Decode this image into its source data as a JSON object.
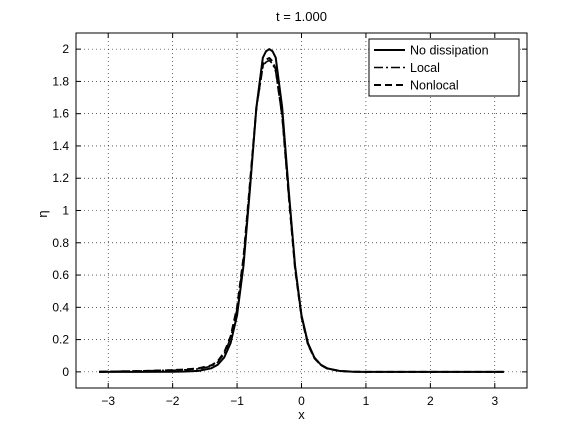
{
  "chart_data": {
    "type": "line",
    "title": "t = 1.000",
    "xlabel": "x",
    "ylabel": "η",
    "xlim": [
      -3.5,
      3.5
    ],
    "ylim": [
      -0.1,
      2.1
    ],
    "xticks": [
      -3,
      -2,
      -1,
      0,
      1,
      2,
      3
    ],
    "xtick_labels": [
      "−3",
      "−2",
      "−1",
      "0",
      "1",
      "2",
      "3"
    ],
    "yticks": [
      0,
      0.2,
      0.4,
      0.6,
      0.8,
      1,
      1.2,
      1.4,
      1.6,
      1.8,
      2
    ],
    "ytick_labels": [
      "0",
      "0.2",
      "0.4",
      "0.6",
      "0.8",
      "1",
      "1.2",
      "1.4",
      "1.6",
      "1.8",
      "2"
    ],
    "grid": true,
    "legend_position": "top-right",
    "series": [
      {
        "name": "No dissipation",
        "style": "solid",
        "x": [
          -3.1416,
          -2.5,
          -2.0,
          -1.8,
          -1.6,
          -1.4,
          -1.3,
          -1.2,
          -1.1,
          -1.0,
          -0.9,
          -0.8,
          -0.7,
          -0.6,
          -0.55,
          -0.5,
          -0.45,
          -0.4,
          -0.3,
          -0.2,
          -0.1,
          0.0,
          0.1,
          0.2,
          0.3,
          0.4,
          0.6,
          0.8,
          1.0,
          1.5,
          2.0,
          2.5,
          3.1416
        ],
        "y": [
          0.0,
          0.0,
          0.001,
          0.002,
          0.006,
          0.022,
          0.044,
          0.089,
          0.179,
          0.351,
          0.659,
          1.133,
          1.639,
          1.947,
          1.987,
          2.0,
          1.987,
          1.947,
          1.639,
          1.133,
          0.659,
          0.351,
          0.179,
          0.089,
          0.044,
          0.022,
          0.005,
          0.001,
          0.0,
          0.0,
          0.0,
          0.0,
          0.0
        ]
      },
      {
        "name": "Local",
        "style": "dash-dot",
        "x": [
          -3.1416,
          -2.5,
          -2.0,
          -1.8,
          -1.6,
          -1.4,
          -1.3,
          -1.2,
          -1.1,
          -1.0,
          -0.9,
          -0.8,
          -0.7,
          -0.6,
          -0.55,
          -0.5,
          -0.45,
          -0.4,
          -0.3,
          -0.2,
          -0.1,
          0.0,
          0.1,
          0.2,
          0.3,
          0.4,
          0.6,
          0.8,
          1.0,
          1.5,
          2.0,
          2.5,
          3.1416
        ],
        "y": [
          0.002,
          0.006,
          0.01,
          0.013,
          0.018,
          0.035,
          0.06,
          0.11,
          0.21,
          0.39,
          0.7,
          1.16,
          1.63,
          1.89,
          1.92,
          1.93,
          1.91,
          1.86,
          1.58,
          1.1,
          0.64,
          0.34,
          0.17,
          0.085,
          0.042,
          0.02,
          0.005,
          0.001,
          0.0,
          0.0,
          0.0,
          0.0,
          0.0
        ]
      },
      {
        "name": "Nonlocal",
        "style": "dashed",
        "x": [
          -3.1416,
          -2.5,
          -2.0,
          -1.8,
          -1.6,
          -1.4,
          -1.3,
          -1.2,
          -1.1,
          -1.0,
          -0.9,
          -0.8,
          -0.7,
          -0.6,
          -0.55,
          -0.5,
          -0.45,
          -0.4,
          -0.3,
          -0.2,
          -0.1,
          0.0,
          0.1,
          0.2,
          0.3,
          0.4,
          0.6,
          0.8,
          1.0,
          1.5,
          2.0,
          2.5,
          3.1416
        ],
        "y": [
          0.0,
          0.005,
          0.011,
          0.015,
          0.022,
          0.04,
          0.066,
          0.12,
          0.22,
          0.4,
          0.71,
          1.17,
          1.64,
          1.9,
          1.935,
          1.945,
          1.925,
          1.875,
          1.59,
          1.1,
          0.64,
          0.34,
          0.17,
          0.085,
          0.042,
          0.02,
          0.005,
          0.001,
          0.0,
          0.0,
          0.0,
          0.0,
          0.0
        ]
      }
    ]
  }
}
